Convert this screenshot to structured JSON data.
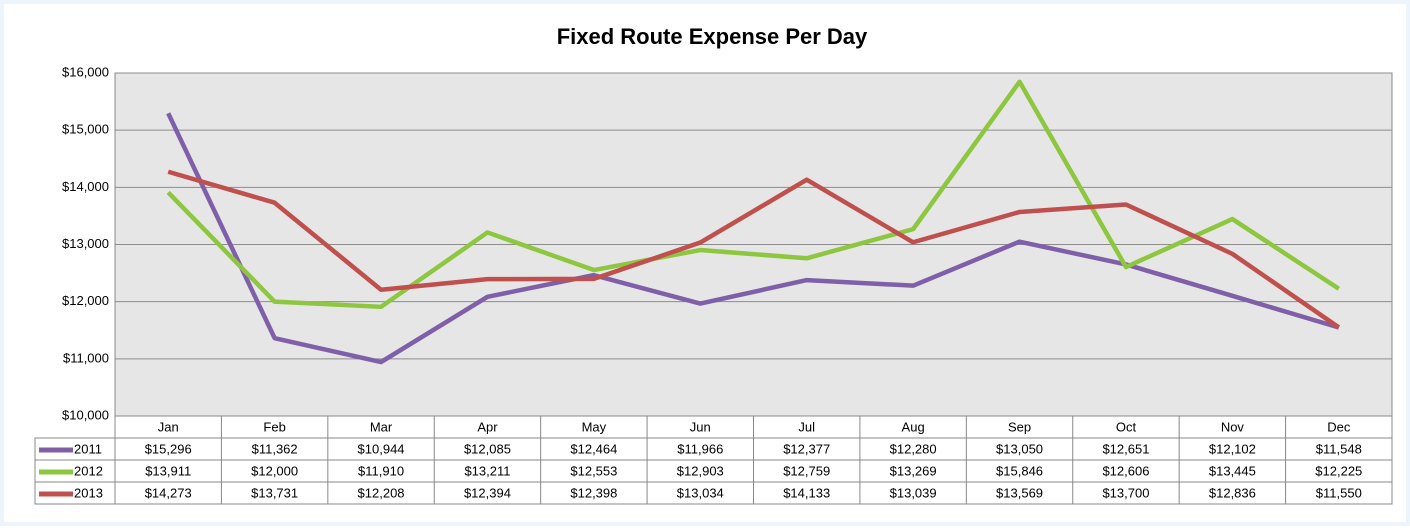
{
  "chart_data": {
    "type": "line",
    "title": "Fixed Route Expense Per Day",
    "categories": [
      "Jan",
      "Feb",
      "Mar",
      "Apr",
      "May",
      "Jun",
      "Jul",
      "Aug",
      "Sep",
      "Oct",
      "Nov",
      "Dec"
    ],
    "series": [
      {
        "name": "2011",
        "color": "#7f5fa8",
        "values": [
          15296,
          11362,
          10944,
          12085,
          12464,
          11966,
          12377,
          12280,
          13050,
          12651,
          12102,
          11548
        ],
        "value_labels": [
          "$15,296",
          "$11,362",
          "$10,944",
          "$12,085",
          "$12,464",
          "$11,966",
          "$12,377",
          "$12,280",
          "$13,050",
          "$12,651",
          "$12,102",
          "$11,548"
        ]
      },
      {
        "name": "2012",
        "color": "#8dc63f",
        "values": [
          13911,
          12000,
          11910,
          13211,
          12553,
          12903,
          12759,
          13269,
          15846,
          12606,
          13445,
          12225
        ],
        "value_labels": [
          "$13,911",
          "$12,000",
          "$11,910",
          "$13,211",
          "$12,553",
          "$12,903",
          "$12,759",
          "$13,269",
          "$15,846",
          "$12,606",
          "$13,445",
          "$12,225"
        ]
      },
      {
        "name": "2013",
        "color": "#c0504d",
        "values": [
          14273,
          13731,
          12208,
          12394,
          12398,
          13034,
          14133,
          13039,
          13569,
          13700,
          12836,
          11550
        ],
        "value_labels": [
          "$14,273",
          "$13,731",
          "$12,208",
          "$12,394",
          "$12,398",
          "$13,034",
          "$14,133",
          "$13,039",
          "$13,569",
          "$13,700",
          "$12,836",
          "$11,550"
        ]
      }
    ],
    "ylim": [
      10000,
      16000
    ],
    "yticks": [
      {
        "value": 10000,
        "label": "$10,000"
      },
      {
        "value": 11000,
        "label": "$11,000"
      },
      {
        "value": 12000,
        "label": "$12,000"
      },
      {
        "value": 13000,
        "label": "$13,000"
      },
      {
        "value": 14000,
        "label": "$14,000"
      },
      {
        "value": 15000,
        "label": "$15,000"
      },
      {
        "value": 16000,
        "label": "$16,000"
      }
    ],
    "grid": true
  }
}
